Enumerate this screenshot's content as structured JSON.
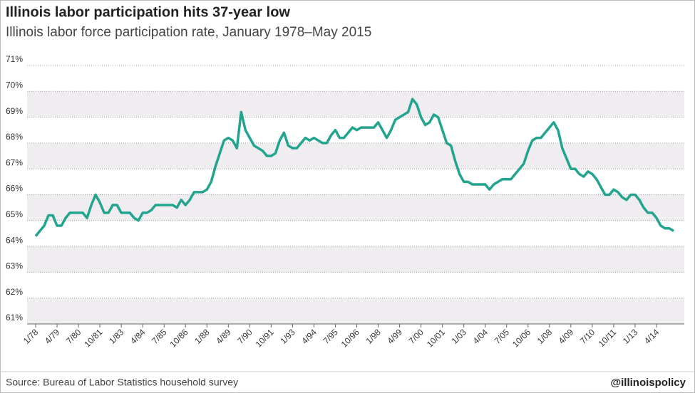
{
  "chart_data": {
    "type": "line",
    "title": "Illinois labor participation hits 37-year low",
    "subtitle": "Illinois labor force participation rate, January 1978–May 2015",
    "source": "Source: Bureau of Labor Statistics household survey",
    "credit": "@illinoispolicy",
    "categories": [
      "1/78",
      null,
      null,
      null,
      null,
      "4/79",
      null,
      null,
      null,
      null,
      "7/80",
      null,
      null,
      null,
      null,
      "10/81",
      null,
      null,
      null,
      null,
      "1/83",
      null,
      null,
      null,
      null,
      "4/84",
      null,
      null,
      null,
      null,
      "7/85",
      null,
      null,
      null,
      null,
      "10/86",
      null,
      null,
      null,
      null,
      "1/88",
      null,
      null,
      null,
      null,
      "4/89",
      null,
      null,
      null,
      null,
      "7/90",
      null,
      null,
      null,
      null,
      "10/91",
      null,
      null,
      null,
      null,
      "1/93",
      null,
      null,
      null,
      null,
      "4/94",
      null,
      null,
      null,
      null,
      "7/95",
      null,
      null,
      null,
      null,
      "10/96",
      null,
      null,
      null,
      null,
      "1/98",
      null,
      null,
      null,
      null,
      "4/99",
      null,
      null,
      null,
      null,
      "7/00",
      null,
      null,
      null,
      null,
      "10/01",
      null,
      null,
      null,
      null,
      "1/03",
      null,
      null,
      null,
      null,
      "4/04",
      null,
      null,
      null,
      null,
      "7/05",
      null,
      null,
      null,
      null,
      "10/06",
      null,
      null,
      null,
      null,
      "1/08",
      null,
      null,
      null,
      null,
      "4/09",
      null,
      null,
      null,
      null,
      "7/10",
      null,
      null,
      null,
      null,
      "10/11",
      null,
      null,
      null,
      null,
      "1/13",
      null,
      null,
      null,
      null,
      "4/14",
      null,
      null,
      null,
      null
    ],
    "series": [
      {
        "name": "Illinois labor force participation rate",
        "color": "#22a48f",
        "values": [
          64.4,
          64.6,
          64.8,
          65.2,
          65.2,
          64.8,
          64.8,
          65.1,
          65.3,
          65.3,
          65.3,
          65.3,
          65.1,
          65.6,
          66.0,
          65.7,
          65.3,
          65.3,
          65.6,
          65.6,
          65.3,
          65.3,
          65.3,
          65.1,
          65.0,
          65.3,
          65.3,
          65.4,
          65.6,
          65.6,
          65.6,
          65.6,
          65.6,
          65.5,
          65.8,
          65.6,
          65.8,
          66.1,
          66.1,
          66.1,
          66.2,
          66.5,
          67.1,
          67.6,
          68.1,
          68.2,
          68.1,
          67.8,
          69.2,
          68.5,
          68.2,
          67.9,
          67.8,
          67.7,
          67.5,
          67.5,
          67.6,
          68.1,
          68.4,
          67.9,
          67.8,
          67.8,
          68.0,
          68.2,
          68.1,
          68.2,
          68.1,
          68.0,
          68.0,
          68.3,
          68.5,
          68.2,
          68.2,
          68.4,
          68.6,
          68.5,
          68.6,
          68.6,
          68.6,
          68.6,
          68.8,
          68.5,
          68.2,
          68.5,
          68.9,
          69.0,
          69.1,
          69.2,
          69.7,
          69.5,
          69.0,
          68.7,
          68.8,
          69.1,
          69.0,
          68.5,
          68.0,
          67.9,
          67.3,
          66.8,
          66.5,
          66.5,
          66.4,
          66.4,
          66.4,
          66.4,
          66.2,
          66.4,
          66.5,
          66.6,
          66.6,
          66.6,
          66.8,
          67.0,
          67.2,
          67.7,
          68.1,
          68.2,
          68.2,
          68.4,
          68.6,
          68.8,
          68.5,
          67.8,
          67.4,
          67.0,
          67.0,
          66.8,
          66.7,
          66.9,
          66.8,
          66.6,
          66.3,
          66.0,
          66.0,
          66.2,
          66.1,
          65.9,
          65.8,
          66.0,
          66.0,
          65.8,
          65.5,
          65.3,
          65.3,
          65.1,
          64.8,
          64.7,
          64.7,
          64.6
        ]
      }
    ],
    "ylim": [
      61,
      71
    ],
    "yticks": [
      {
        "value": 61,
        "label": "61%"
      },
      {
        "value": 62,
        "label": "62%"
      },
      {
        "value": 63,
        "label": "63%"
      },
      {
        "value": 64,
        "label": "64%"
      },
      {
        "value": 65,
        "label": "65%"
      },
      {
        "value": 66,
        "label": "66%"
      },
      {
        "value": 67,
        "label": "67%"
      },
      {
        "value": 68,
        "label": "68%"
      },
      {
        "value": 69,
        "label": "69%"
      },
      {
        "value": 70,
        "label": "70%"
      },
      {
        "value": 71,
        "label": "71%"
      }
    ],
    "grid": true
  }
}
